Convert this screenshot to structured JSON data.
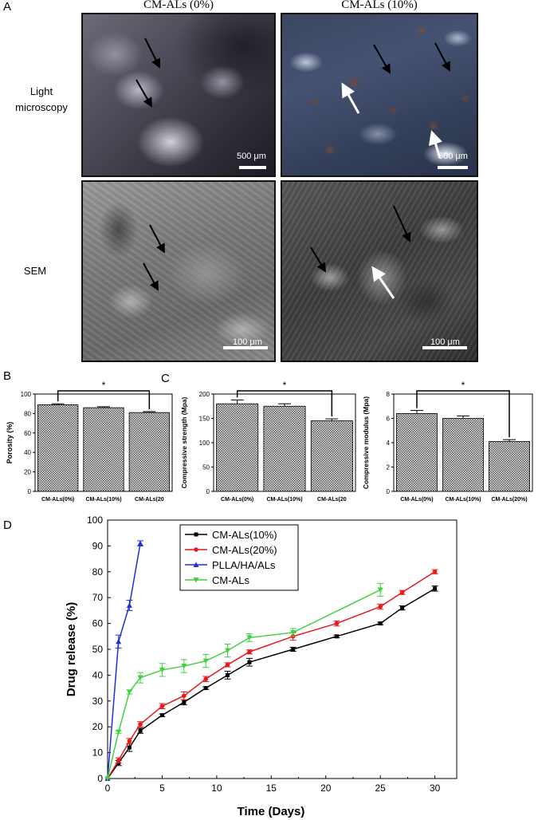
{
  "panel_letters": {
    "a": "A",
    "b": "B",
    "c": "C",
    "d": "D"
  },
  "panelA": {
    "columns": [
      "CM-ALs (0%)",
      "CM-ALs (10%)"
    ],
    "row_light": [
      "Light",
      "microscopy"
    ],
    "row_sem": "SEM",
    "scale_light": "500 μm",
    "scale_sem": "100 μm"
  },
  "colors": {
    "bar_fill": "#bdbdbd",
    "black": "#000000",
    "red": "#e41a1c",
    "blue": "#1f2fd6",
    "green": "#3fd13f"
  },
  "chart_data": [
    {
      "type": "bar",
      "panel": "B",
      "categories": [
        "CM-ALs(0%)",
        "CM-ALs(10%)",
        "CM-ALs(20"
      ],
      "values": [
        89,
        86,
        81
      ],
      "errors": [
        1,
        1,
        1
      ],
      "ylabel": "Porosity (%)",
      "ylim": [
        0,
        100
      ],
      "yticks": [
        0,
        20,
        40,
        60,
        80,
        100
      ],
      "significance": "*"
    },
    {
      "type": "bar",
      "panel": "C-left",
      "categories": [
        "CM-ALs(0%)",
        "CM-ALs(10%)",
        "CM-ALs(20"
      ],
      "values": [
        180,
        175,
        145
      ],
      "errors": [
        8,
        5,
        4
      ],
      "ylabel": "Compressive strength (Mpa)",
      "ylim": [
        0,
        200
      ],
      "yticks": [
        0,
        50,
        100,
        150,
        200
      ],
      "significance": "*"
    },
    {
      "type": "bar",
      "panel": "C-right",
      "categories": [
        "CM-ALs(0%)",
        "CM-ALs(10%)",
        "CM-ALs(20%)"
      ],
      "values": [
        6.4,
        6.0,
        4.1
      ],
      "errors": [
        0.25,
        0.2,
        0.15
      ],
      "ylabel": "Compressive modulus (Mpa)",
      "ylim": [
        0,
        8
      ],
      "yticks": [
        0,
        2,
        4,
        6,
        8
      ],
      "significance": "*"
    },
    {
      "type": "line",
      "panel": "D",
      "xlabel": "Time (Days)",
      "ylabel": "Drug release (%)",
      "xlim": [
        0,
        32
      ],
      "ylim": [
        0,
        100
      ],
      "xticks": [
        0,
        5,
        10,
        15,
        20,
        25,
        30
      ],
      "yticks": [
        0,
        10,
        20,
        30,
        40,
        50,
        60,
        70,
        80,
        90,
        100
      ],
      "legend_position": "top-center",
      "series": [
        {
          "name": "CM-ALs(10%)",
          "color": "#000000",
          "marker": "square",
          "x": [
            0,
            1,
            2,
            3,
            5,
            7,
            9,
            11,
            13,
            17,
            21,
            25,
            27,
            30
          ],
          "y": [
            0,
            6,
            12,
            18.5,
            24.5,
            29.5,
            35,
            40,
            45,
            50,
            55,
            60,
            66,
            73.5
          ],
          "err": [
            0,
            1,
            1.5,
            1,
            0.5,
            1,
            0.5,
            1.5,
            1.5,
            0.8,
            0.5,
            0.5,
            0.8,
            1
          ]
        },
        {
          "name": "CM-ALs(20%)",
          "color": "#e41a1c",
          "marker": "circle",
          "x": [
            0,
            1,
            2,
            3,
            5,
            7,
            9,
            11,
            13,
            17,
            21,
            25,
            27,
            30
          ],
          "y": [
            0,
            7,
            14.5,
            21,
            28,
            32,
            38.5,
            44,
            49,
            55,
            60,
            66.5,
            72,
            80
          ],
          "err": [
            0,
            1,
            1,
            1,
            1,
            1.5,
            1,
            0.8,
            0.8,
            1.5,
            1,
            1,
            0.8,
            0.8
          ]
        },
        {
          "name": "PLLA/HA/ALs",
          "color": "#1f2fd6",
          "marker": "triangle-up",
          "x": [
            0,
            1,
            2,
            3
          ],
          "y": [
            0,
            53,
            67,
            91
          ],
          "err": [
            0,
            2.5,
            2,
            1
          ]
        },
        {
          "name": "CM-ALs",
          "color": "#3fd13f",
          "marker": "triangle-down",
          "x": [
            0,
            1,
            2,
            3,
            5,
            7,
            9,
            11,
            13,
            17,
            25
          ],
          "y": [
            0,
            18,
            33.5,
            39,
            42,
            43.5,
            45.5,
            49.5,
            54.5,
            56.5,
            73
          ],
          "err": [
            0,
            0.5,
            0.8,
            2,
            2.5,
            2.5,
            2.5,
            2.5,
            1.5,
            1.5,
            2.5
          ]
        }
      ]
    }
  ]
}
